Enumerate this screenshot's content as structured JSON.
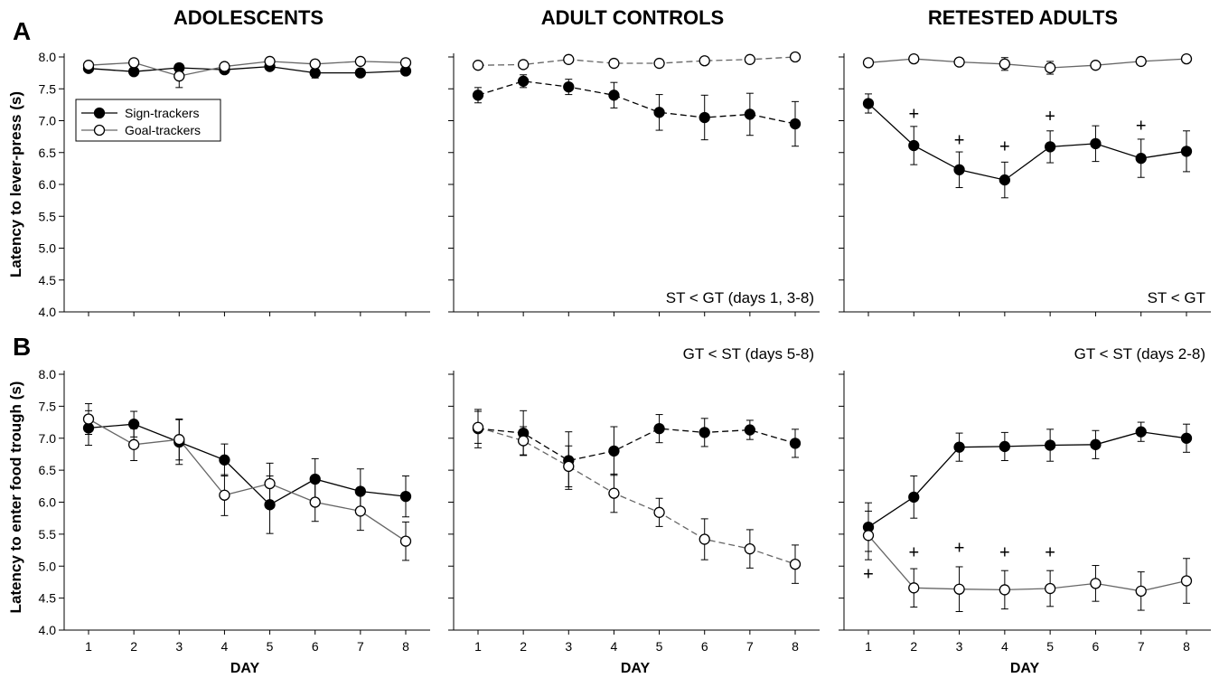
{
  "panel_labels": {
    "a": "A",
    "b": "B"
  },
  "columns": [
    "ADOLESCENTS",
    "ADULT CONTROLS",
    "RETESTED ADULTS"
  ],
  "y_labels": {
    "a": "Latency to lever-press (s)",
    "b": "Latency to enter food trough (s)"
  },
  "x_label": "DAY",
  "legend": {
    "filled": "Sign-trackers",
    "open": "Goal-trackers"
  },
  "colors": {
    "line": "#000000",
    "open_line": "#666666",
    "fill_st": "#000000",
    "fill_gt": "#ffffff"
  },
  "chart_data": [
    {
      "type": "line",
      "panel": "A",
      "column": "ADOLESCENTS",
      "x": [
        1,
        2,
        3,
        4,
        5,
        6,
        7,
        8
      ],
      "ylim": [
        4.0,
        8.0
      ],
      "yticks": [
        4.0,
        4.5,
        5.0,
        5.5,
        6.0,
        6.5,
        7.0,
        7.5,
        8.0
      ],
      "ylabel": "Latency to lever-press (s)",
      "xlabel": "",
      "style": "solid",
      "annotation": "",
      "plus_markers": [],
      "series": [
        {
          "name": "Sign-trackers",
          "marker": "filled",
          "values": [
            7.82,
            7.77,
            7.83,
            7.8,
            7.85,
            7.75,
            7.75,
            7.78
          ],
          "errors": [
            0.04,
            0.06,
            0.06,
            0.05,
            0.04,
            0.08,
            0.05,
            0.05
          ]
        },
        {
          "name": "Goal-trackers",
          "marker": "open",
          "values": [
            7.87,
            7.91,
            7.7,
            7.85,
            7.93,
            7.89,
            7.93,
            7.91
          ],
          "errors": [
            0.04,
            0.04,
            0.18,
            0.05,
            0.04,
            0.05,
            0.04,
            0.04
          ]
        }
      ]
    },
    {
      "type": "line",
      "panel": "A",
      "column": "ADULT CONTROLS",
      "x": [
        1,
        2,
        3,
        4,
        5,
        6,
        7,
        8
      ],
      "ylim": [
        4.0,
        8.0
      ],
      "yticks": [
        4.0,
        4.5,
        5.0,
        5.5,
        6.0,
        6.5,
        7.0,
        7.5,
        8.0
      ],
      "ylabel": "",
      "xlabel": "",
      "style": "dashed",
      "annotation": "ST < GT (days 1, 3-8)",
      "annotation_pos": "bottom-right",
      "plus_markers": [],
      "series": [
        {
          "name": "Sign-trackers",
          "marker": "filled",
          "values": [
            7.4,
            7.62,
            7.53,
            7.4,
            7.13,
            7.05,
            7.1,
            6.95
          ],
          "errors": [
            0.12,
            0.1,
            0.12,
            0.2,
            0.28,
            0.35,
            0.33,
            0.35
          ]
        },
        {
          "name": "Goal-trackers",
          "marker": "open",
          "values": [
            7.87,
            7.88,
            7.96,
            7.9,
            7.9,
            7.94,
            7.96,
            8.0
          ],
          "errors": [
            0.02,
            0.02,
            0.02,
            0.02,
            0.02,
            0.02,
            0.02,
            0.02
          ]
        }
      ]
    },
    {
      "type": "line",
      "panel": "A",
      "column": "RETESTED ADULTS",
      "x": [
        1,
        2,
        3,
        4,
        5,
        6,
        7,
        8
      ],
      "ylim": [
        4.0,
        8.0
      ],
      "yticks": [
        4.0,
        4.5,
        5.0,
        5.5,
        6.0,
        6.5,
        7.0,
        7.5,
        8.0
      ],
      "ylabel": "",
      "xlabel": "",
      "style": "solid",
      "annotation": "ST < GT",
      "annotation_pos": "bottom-right",
      "plus_markers": [
        {
          "x": 2,
          "y": 7.11
        },
        {
          "x": 3,
          "y": 6.7
        },
        {
          "x": 4,
          "y": 6.6
        },
        {
          "x": 5,
          "y": 7.08
        },
        {
          "x": 7,
          "y": 6.93
        }
      ],
      "series": [
        {
          "name": "Sign-trackers",
          "marker": "filled",
          "values": [
            7.27,
            6.61,
            6.23,
            6.07,
            6.59,
            6.64,
            6.41,
            6.52
          ],
          "errors": [
            0.15,
            0.3,
            0.28,
            0.28,
            0.25,
            0.28,
            0.3,
            0.32
          ]
        },
        {
          "name": "Goal-trackers",
          "marker": "open",
          "values": [
            7.91,
            7.97,
            7.92,
            7.89,
            7.83,
            7.87,
            7.93,
            7.97
          ],
          "errors": [
            0.03,
            0.03,
            0.04,
            0.1,
            0.1,
            0.04,
            0.04,
            0.04
          ]
        }
      ]
    },
    {
      "type": "line",
      "panel": "B",
      "column": "ADOLESCENTS",
      "x": [
        1,
        2,
        3,
        4,
        5,
        6,
        7,
        8
      ],
      "ylim": [
        4.0,
        8.0
      ],
      "yticks": [
        4.0,
        4.5,
        5.0,
        5.5,
        6.0,
        6.5,
        7.0,
        7.5,
        8.0
      ],
      "ylabel": "Latency to enter food trough (s)",
      "xlabel": "DAY",
      "style": "solid",
      "annotation": "",
      "plus_markers": [],
      "series": [
        {
          "name": "Sign-trackers",
          "marker": "filled",
          "values": [
            7.16,
            7.22,
            6.94,
            6.66,
            5.96,
            6.36,
            6.17,
            6.09
          ],
          "errors": [
            0.27,
            0.2,
            0.35,
            0.25,
            0.45,
            0.32,
            0.35,
            0.32
          ]
        },
        {
          "name": "Goal-trackers",
          "marker": "open",
          "values": [
            7.3,
            6.9,
            6.98,
            6.11,
            6.29,
            6.0,
            5.86,
            5.39
          ],
          "errors": [
            0.24,
            0.25,
            0.32,
            0.32,
            0.32,
            0.3,
            0.3,
            0.3
          ]
        }
      ]
    },
    {
      "type": "line",
      "panel": "B",
      "column": "ADULT CONTROLS",
      "x": [
        1,
        2,
        3,
        4,
        5,
        6,
        7,
        8
      ],
      "ylim": [
        4.0,
        8.0
      ],
      "yticks": [
        4.0,
        4.5,
        5.0,
        5.5,
        6.0,
        6.5,
        7.0,
        7.5,
        8.0
      ],
      "ylabel": "",
      "xlabel": "DAY",
      "style": "dashed",
      "annotation": "GT < ST (days 5-8)",
      "annotation_pos": "top-right",
      "plus_markers": [],
      "series": [
        {
          "name": "Sign-trackers",
          "marker": "filled",
          "values": [
            7.15,
            7.08,
            6.65,
            6.8,
            7.15,
            7.09,
            7.13,
            6.92
          ],
          "errors": [
            0.3,
            0.35,
            0.45,
            0.38,
            0.22,
            0.22,
            0.15,
            0.22
          ]
        },
        {
          "name": "Goal-trackers",
          "marker": "open",
          "values": [
            7.17,
            6.96,
            6.56,
            6.14,
            5.84,
            5.42,
            5.27,
            5.03
          ],
          "errors": [
            0.25,
            0.22,
            0.32,
            0.3,
            0.22,
            0.32,
            0.3,
            0.3
          ]
        }
      ]
    },
    {
      "type": "line",
      "panel": "B",
      "column": "RETESTED ADULTS",
      "x": [
        1,
        2,
        3,
        4,
        5,
        6,
        7,
        8
      ],
      "ylim": [
        4.0,
        8.0
      ],
      "yticks": [
        4.0,
        4.5,
        5.0,
        5.5,
        6.0,
        6.5,
        7.0,
        7.5,
        8.0
      ],
      "ylabel": "",
      "xlabel": "DAY",
      "style": "solid",
      "annotation": "GT < ST (days 2-8)",
      "annotation_pos": "top-right",
      "plus_markers": [
        {
          "x": 1,
          "y": 4.88
        },
        {
          "x": 2,
          "y": 5.22
        },
        {
          "x": 3,
          "y": 5.29
        },
        {
          "x": 4,
          "y": 5.22
        },
        {
          "x": 5,
          "y": 5.22
        }
      ],
      "series": [
        {
          "name": "Sign-trackers",
          "marker": "filled",
          "values": [
            5.61,
            6.08,
            6.86,
            6.87,
            6.89,
            6.9,
            7.1,
            7.0
          ],
          "errors": [
            0.38,
            0.33,
            0.22,
            0.22,
            0.25,
            0.22,
            0.15,
            0.22
          ]
        },
        {
          "name": "Goal-trackers",
          "marker": "open",
          "values": [
            5.48,
            4.66,
            4.64,
            4.63,
            4.65,
            4.73,
            4.61,
            4.77
          ],
          "errors": [
            0.38,
            0.3,
            0.35,
            0.3,
            0.28,
            0.28,
            0.3,
            0.35
          ]
        }
      ]
    }
  ]
}
